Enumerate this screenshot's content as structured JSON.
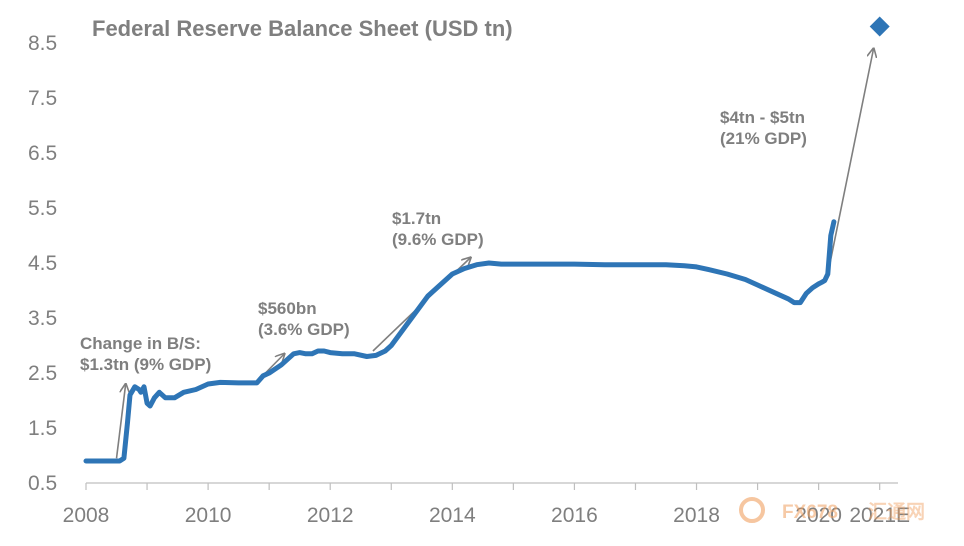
{
  "chart_data": {
    "type": "line",
    "title": "Federal Reserve Balance Sheet (USD tn)",
    "xlabel": "",
    "ylabel": "",
    "x_ticks": [
      "2008",
      "2010",
      "2012",
      "2014",
      "2016",
      "2018",
      "2020",
      "2021E"
    ],
    "x_tick_positions": [
      2008,
      2010,
      2012,
      2014,
      2016,
      2018,
      2020,
      2021
    ],
    "xlim": [
      2008,
      2021.3
    ],
    "ylim": [
      0.5,
      8.9
    ],
    "y_ticks": [
      0.5,
      1.5,
      2.5,
      3.5,
      4.5,
      5.5,
      6.5,
      7.5,
      8.5
    ],
    "y_tick_labels": [
      "0.5",
      "1.5",
      "2.5",
      "3.5",
      "4.5",
      "5.5",
      "6.5",
      "7.5",
      "8.5"
    ],
    "grid": false,
    "series": [
      {
        "color": "#2e75b6",
        "x": [
          2008.0,
          2008.3,
          2008.55,
          2008.62,
          2008.68,
          2008.72,
          2008.8,
          2008.87,
          2008.9,
          2008.95,
          2009.0,
          2009.05,
          2009.12,
          2009.2,
          2009.3,
          2009.45,
          2009.6,
          2009.8,
          2010.0,
          2010.2,
          2010.5,
          2010.8,
          2010.9,
          2011.0,
          2011.2,
          2011.4,
          2011.5,
          2011.6,
          2011.7,
          2011.8,
          2011.9,
          2012.0,
          2012.2,
          2012.4,
          2012.6,
          2012.75,
          2012.9,
          2013.0,
          2013.2,
          2013.4,
          2013.6,
          2013.8,
          2014.0,
          2014.2,
          2014.4,
          2014.6,
          2014.8,
          2015.0,
          2015.5,
          2016.0,
          2016.5,
          2017.0,
          2017.5,
          2017.8,
          2018.0,
          2018.2,
          2018.5,
          2018.8,
          2019.0,
          2019.3,
          2019.5,
          2019.6,
          2019.7,
          2019.8,
          2019.9,
          2020.0,
          2020.05,
          2020.1,
          2020.15,
          2020.2,
          2020.25
        ],
        "y": [
          0.9,
          0.9,
          0.9,
          0.95,
          1.6,
          2.1,
          2.25,
          2.2,
          2.15,
          2.25,
          1.95,
          1.9,
          2.05,
          2.15,
          2.05,
          2.05,
          2.15,
          2.2,
          2.3,
          2.33,
          2.32,
          2.32,
          2.45,
          2.5,
          2.65,
          2.85,
          2.87,
          2.85,
          2.85,
          2.9,
          2.9,
          2.87,
          2.85,
          2.85,
          2.8,
          2.82,
          2.9,
          3.0,
          3.3,
          3.6,
          3.9,
          4.1,
          4.3,
          4.4,
          4.47,
          4.5,
          4.48,
          4.48,
          4.48,
          4.48,
          4.47,
          4.47,
          4.47,
          4.45,
          4.43,
          4.38,
          4.3,
          4.2,
          4.1,
          3.95,
          3.85,
          3.78,
          3.78,
          3.95,
          4.05,
          4.12,
          4.15,
          4.18,
          4.3,
          5.0,
          5.25
        ]
      },
      {
        "color": "#2e75b6",
        "marker": "diamond",
        "x": [
          2021.0
        ],
        "y": [
          8.8
        ]
      }
    ],
    "annotations": [
      {
        "lines": [
          "Change in B/S:",
          "$1.3tn (9% GDP)"
        ]
      },
      {
        "lines": [
          "$560bn",
          "(3.6% GDP)"
        ]
      },
      {
        "lines": [
          "$1.7tn",
          "(9.6% GDP)"
        ]
      },
      {
        "lines": [
          "$4tn - $5tn",
          "(21% GDP)"
        ]
      }
    ],
    "arrows": [
      {
        "from": [
          2008.5,
          0.95
        ],
        "to": [
          2008.65,
          2.3
        ]
      },
      {
        "from": [
          2010.85,
          2.4
        ],
        "to": [
          2011.25,
          2.85
        ]
      },
      {
        "from": [
          2012.7,
          2.9
        ],
        "to": [
          2014.3,
          4.6
        ]
      },
      {
        "from": [
          2020.15,
          4.3
        ],
        "to": [
          2020.9,
          8.4
        ]
      }
    ]
  },
  "watermark": {
    "brand": "FX678",
    "subtitle": "汇通网"
  }
}
